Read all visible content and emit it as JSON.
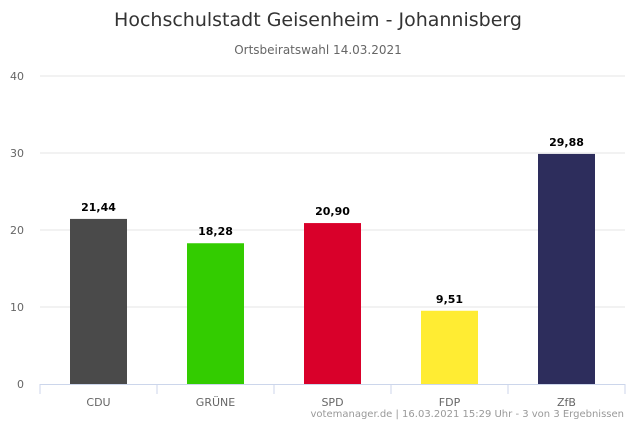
{
  "chart_data": {
    "type": "bar",
    "title": "Hochschulstadt Geisenheim - Johannisberg",
    "subtitle": "Ortsbeiratswahl 14.03.2021",
    "xlabel": "",
    "ylabel": "",
    "categories": [
      "CDU",
      "GRÜNE",
      "SPD",
      "FDP",
      "ZfB"
    ],
    "values": [
      21.44,
      18.28,
      20.9,
      9.51,
      29.88
    ],
    "data_labels": [
      "21,44",
      "18,28",
      "20,90",
      "9,51",
      "29,88"
    ],
    "colors": [
      "#4a4a4a",
      "#33cc00",
      "#d9002a",
      "#ffec33",
      "#2d2d5c"
    ],
    "ylim": [
      0,
      40
    ],
    "yticks": [
      0,
      10,
      20,
      30,
      40
    ],
    "ytick_labels": [
      "0",
      "10",
      "20",
      "30",
      "40"
    ],
    "grid": true,
    "legend": "none",
    "credits": "votemanager.de | 16.03.2021 15:29 Uhr - 3 von 3 Ergebnissen"
  }
}
